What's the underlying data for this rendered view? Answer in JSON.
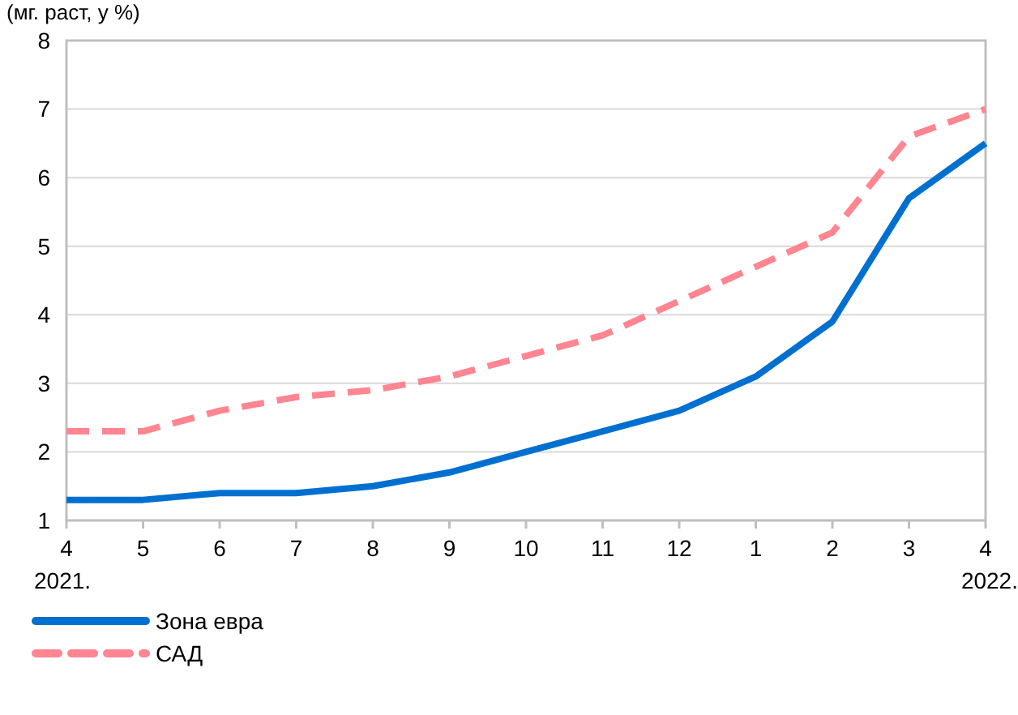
{
  "chart_data": {
    "type": "line",
    "ylabel": "(мг. раст, у %)",
    "categories": [
      "4\n2021.",
      "5",
      "6",
      "7",
      "8",
      "9",
      "10",
      "11",
      "12",
      "1",
      "2",
      "3",
      "4\n2022."
    ],
    "series": [
      {
        "name": "Зона евра",
        "color": "#0070d0",
        "line_style": "solid",
        "values": [
          1.3,
          1.3,
          1.4,
          1.4,
          1.5,
          1.7,
          2.0,
          2.3,
          2.6,
          3.1,
          3.9,
          5.7,
          6.5
        ]
      },
      {
        "name": "САД",
        "color": "#ff8591",
        "line_style": "dashed",
        "values": [
          2.3,
          2.3,
          2.6,
          2.8,
          2.9,
          3.1,
          3.4,
          3.7,
          4.2,
          4.7,
          5.2,
          6.6,
          7.0
        ]
      }
    ],
    "ylim": [
      1,
      8
    ],
    "yticks": [
      1,
      2,
      3,
      4,
      5,
      6,
      7,
      8
    ],
    "grid": "y",
    "legend": "bottom left",
    "marker": "none"
  }
}
